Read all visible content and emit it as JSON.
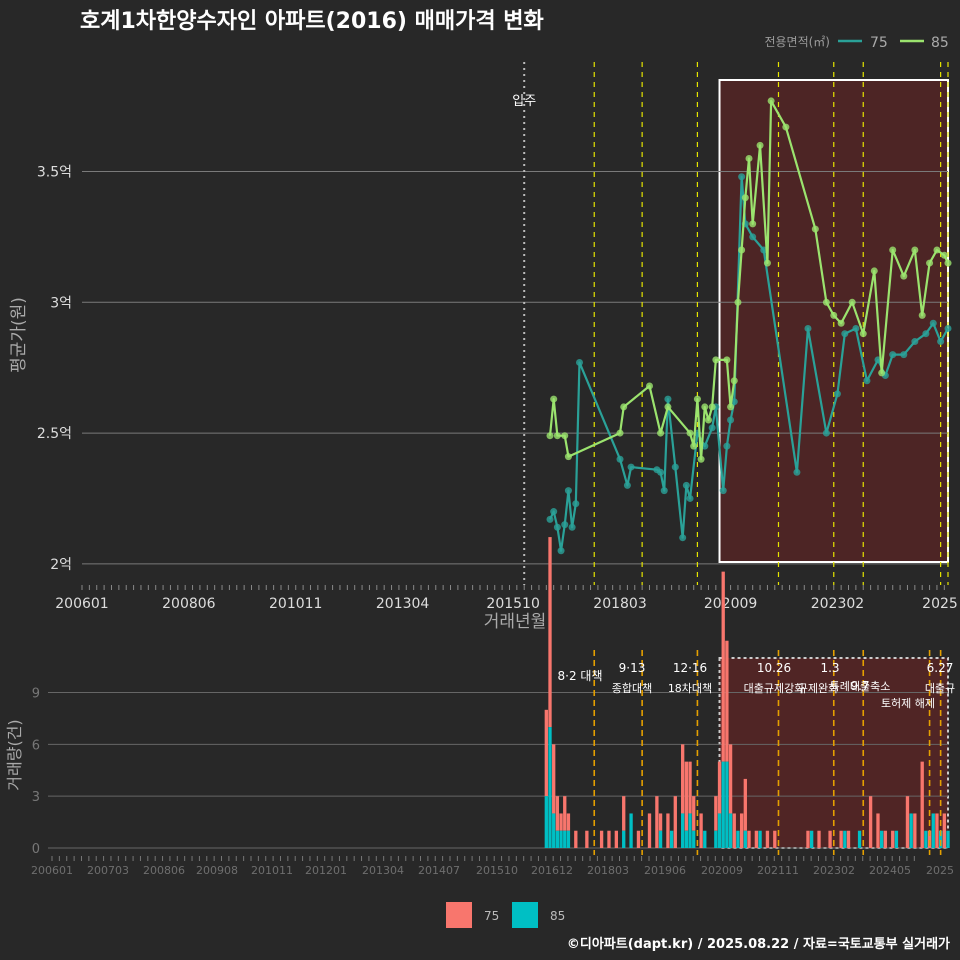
{
  "title": "호계1차한양수자인 아파트(2016) 매매가격 변화",
  "footer": "©디아파트(dapt.kr) / 2025.08.22 / 자료=국토교통부 실거래가",
  "legend_top": {
    "title": "전용면적(㎡)",
    "items": [
      "75",
      "85"
    ]
  },
  "legend_bottom": {
    "items": [
      "75",
      "85"
    ]
  },
  "colors": {
    "s75": "#2aa198",
    "s85": "#9be36e",
    "bar75": "#f8766d",
    "bar85": "#00bfc4",
    "vline": "#e5e500",
    "vline_bottom": "#e5a000",
    "highlight": "#6b2323",
    "bg": "#282828"
  },
  "chart_data": [
    {
      "type": "line",
      "title": "호계1차한양수자인 아파트(2016) 매매가격 변화",
      "xlabel": "거래년월",
      "ylabel": "평균가(원)",
      "x_tick_labels": [
        "200601",
        "200806",
        "201011",
        "201304",
        "201510",
        "201803",
        "202009",
        "202302",
        "2025"
      ],
      "y_tick_labels": [
        "2억",
        "2.5억",
        "3억",
        "3.5억"
      ],
      "y_ticks": [
        2.0,
        2.5,
        3.0,
        3.5
      ],
      "ylim": [
        1.9,
        3.85
      ],
      "xlim": [
        "2006-01",
        "2025-08"
      ],
      "annotation_move_in": {
        "label": "입주",
        "x": "2016-01"
      },
      "policy_lines": [
        "2017-08",
        "2018-09",
        "2019-12",
        "2021-10",
        "2023-01",
        "2023-09",
        "2025-06",
        "2025-08"
      ],
      "highlight_range": [
        "2020-06",
        "2025-08"
      ],
      "series": [
        {
          "name": "75",
          "points": [
            [
              "2016-08",
              2.17
            ],
            [
              "2016-09",
              2.2
            ],
            [
              "2016-10",
              2.14
            ],
            [
              "2016-11",
              2.05
            ],
            [
              "2016-12",
              2.15
            ],
            [
              "2017-01",
              2.28
            ],
            [
              "2017-02",
              2.14
            ],
            [
              "2017-03",
              2.23
            ],
            [
              "2017-04",
              2.77
            ],
            [
              "2018-03",
              2.4
            ],
            [
              "2018-05",
              2.3
            ],
            [
              "2018-06",
              2.37
            ],
            [
              "2019-01",
              2.36
            ],
            [
              "2019-02",
              2.35
            ],
            [
              "2019-03",
              2.28
            ],
            [
              "2019-04",
              2.63
            ],
            [
              "2019-06",
              2.37
            ],
            [
              "2019-08",
              2.1
            ],
            [
              "2019-09",
              2.3
            ],
            [
              "2019-10",
              2.25
            ],
            [
              "2019-12",
              2.5
            ],
            [
              "2020-02",
              2.45
            ],
            [
              "2020-04",
              2.52
            ],
            [
              "2020-05",
              2.6
            ],
            [
              "2020-07",
              2.28
            ],
            [
              "2020-08",
              2.45
            ],
            [
              "2020-09",
              2.55
            ],
            [
              "2020-10",
              2.62
            ],
            [
              "2020-12",
              3.48
            ],
            [
              "2021-01",
              3.3
            ],
            [
              "2021-03",
              3.25
            ],
            [
              "2021-06",
              3.2
            ],
            [
              "2022-03",
              2.35
            ],
            [
              "2022-06",
              2.9
            ],
            [
              "2022-11",
              2.5
            ],
            [
              "2023-02",
              2.65
            ],
            [
              "2023-04",
              2.88
            ],
            [
              "2023-07",
              2.9
            ],
            [
              "2023-10",
              2.7
            ],
            [
              "2024-01",
              2.78
            ],
            [
              "2024-03",
              2.72
            ],
            [
              "2024-05",
              2.8
            ],
            [
              "2024-08",
              2.8
            ],
            [
              "2024-11",
              2.85
            ],
            [
              "2025-02",
              2.88
            ],
            [
              "2025-04",
              2.92
            ],
            [
              "2025-06",
              2.85
            ],
            [
              "2025-08",
              2.9
            ]
          ]
        },
        {
          "name": "85",
          "points": [
            [
              "2016-08",
              2.49
            ],
            [
              "2016-09",
              2.63
            ],
            [
              "2016-10",
              2.49
            ],
            [
              "2016-12",
              2.49
            ],
            [
              "2017-01",
              2.41
            ],
            [
              "2018-03",
              2.5
            ],
            [
              "2018-04",
              2.6
            ],
            [
              "2018-11",
              2.68
            ],
            [
              "2019-02",
              2.5
            ],
            [
              "2019-04",
              2.6
            ],
            [
              "2019-10",
              2.5
            ],
            [
              "2019-11",
              2.45
            ],
            [
              "2019-12",
              2.63
            ],
            [
              "2020-01",
              2.4
            ],
            [
              "2020-02",
              2.6
            ],
            [
              "2020-03",
              2.55
            ],
            [
              "2020-04",
              2.6
            ],
            [
              "2020-05",
              2.78
            ],
            [
              "2020-08",
              2.78
            ],
            [
              "2020-09",
              2.6
            ],
            [
              "2020-10",
              2.7
            ],
            [
              "2020-11",
              3.0
            ],
            [
              "2020-12",
              3.2
            ],
            [
              "2021-01",
              3.4
            ],
            [
              "2021-02",
              3.55
            ],
            [
              "2021-03",
              3.3
            ],
            [
              "2021-05",
              3.6
            ],
            [
              "2021-07",
              3.15
            ],
            [
              "2021-08",
              3.77
            ],
            [
              "2021-12",
              3.67
            ],
            [
              "2022-08",
              3.28
            ],
            [
              "2022-11",
              3.0
            ],
            [
              "2023-01",
              2.95
            ],
            [
              "2023-03",
              2.92
            ],
            [
              "2023-06",
              3.0
            ],
            [
              "2023-09",
              2.88
            ],
            [
              "2023-12",
              3.12
            ],
            [
              "2024-02",
              2.73
            ],
            [
              "2024-05",
              3.2
            ],
            [
              "2024-08",
              3.1
            ],
            [
              "2024-11",
              3.2
            ],
            [
              "2025-01",
              2.95
            ],
            [
              "2025-03",
              3.15
            ],
            [
              "2025-05",
              3.2
            ],
            [
              "2025-07",
              3.18
            ],
            [
              "2025-08",
              3.15
            ]
          ]
        }
      ]
    },
    {
      "type": "bar",
      "ylabel": "거래량(건)",
      "x_tick_labels": [
        "200601",
        "200703",
        "200806",
        "200908",
        "201011",
        "201201",
        "201304",
        "201407",
        "201510",
        "201612",
        "201803",
        "201906",
        "202009",
        "202111",
        "202302",
        "202405",
        "2025"
      ],
      "y_tick_labels": [
        "0",
        "3",
        "6",
        "9"
      ],
      "y_ticks": [
        0,
        3,
        6,
        9
      ],
      "ylim": [
        0,
        11
      ],
      "highlight_range": [
        "2020-06",
        "2025-08"
      ],
      "policy_labels": [
        {
          "date": "8·2 대책",
          "x": "2017-08"
        },
        {
          "date": "9·13",
          "name": "종합대책",
          "x": "2018-09"
        },
        {
          "date": "12·16",
          "name": "18차대책",
          "x": "2019-12"
        },
        {
          "date": "10.26",
          "name": "대출규제강화",
          "x": "2021-10"
        },
        {
          "date": "1.3",
          "name": "규제완화",
          "x": "2023-01"
        },
        {
          "date": "9.7",
          "name": "특례대출축소",
          "x": "2023-09"
        },
        {
          "date": "",
          "name": "토허제 해제",
          "x": "2025-03"
        },
        {
          "date": "6.27",
          "name": "대출규",
          "x": "2025-06"
        }
      ],
      "series": [
        {
          "name": "75",
          "values": [
            [
              "2016-07",
              5
            ],
            [
              "2016-08",
              11
            ],
            [
              "2016-09",
              4
            ],
            [
              "2016-10",
              2
            ],
            [
              "2016-11",
              1
            ],
            [
              "2016-12",
              2
            ],
            [
              "2017-01",
              1
            ],
            [
              "2017-03",
              1
            ],
            [
              "2017-06",
              1
            ],
            [
              "2017-10",
              1
            ],
            [
              "2017-12",
              1
            ],
            [
              "2018-02",
              1
            ],
            [
              "2018-04",
              2
            ],
            [
              "2018-08",
              1
            ],
            [
              "2018-11",
              2
            ],
            [
              "2019-01",
              3
            ],
            [
              "2019-02",
              1
            ],
            [
              "2019-04",
              2
            ],
            [
              "2019-06",
              3
            ],
            [
              "2019-08",
              4
            ],
            [
              "2019-09",
              4
            ],
            [
              "2019-10",
              3
            ],
            [
              "2019-11",
              2
            ],
            [
              "2020-01",
              2
            ],
            [
              "2020-05",
              2
            ],
            [
              "2020-06",
              3
            ],
            [
              "2020-07",
              11
            ],
            [
              "2020-08",
              7
            ],
            [
              "2020-09",
              4
            ],
            [
              "2020-10",
              2
            ],
            [
              "2020-12",
              2
            ],
            [
              "2021-01",
              3
            ],
            [
              "2021-02",
              1
            ],
            [
              "2021-04",
              1
            ],
            [
              "2021-07",
              1
            ],
            [
              "2021-09",
              1
            ],
            [
              "2022-06",
              1
            ],
            [
              "2022-09",
              1
            ],
            [
              "2022-12",
              1
            ],
            [
              "2023-03",
              1
            ],
            [
              "2023-05",
              1
            ],
            [
              "2023-11",
              3
            ],
            [
              "2024-01",
              2
            ],
            [
              "2024-03",
              1
            ],
            [
              "2024-05",
              1
            ],
            [
              "2024-09",
              3
            ],
            [
              "2024-11",
              2
            ],
            [
              "2025-01",
              5
            ],
            [
              "2025-03",
              1
            ],
            [
              "2025-05",
              2
            ],
            [
              "2025-07",
              2
            ]
          ]
        },
        {
          "name": "85",
          "values": [
            [
              "2016-07",
              3
            ],
            [
              "2016-08",
              7
            ],
            [
              "2016-09",
              2
            ],
            [
              "2016-10",
              1
            ],
            [
              "2016-11",
              1
            ],
            [
              "2016-12",
              1
            ],
            [
              "2017-01",
              1
            ],
            [
              "2018-04",
              1
            ],
            [
              "2018-06",
              2
            ],
            [
              "2019-02",
              1
            ],
            [
              "2019-05",
              1
            ],
            [
              "2019-08",
              2
            ],
            [
              "2019-09",
              1
            ],
            [
              "2019-10",
              2
            ],
            [
              "2019-11",
              1
            ],
            [
              "2020-02",
              1
            ],
            [
              "2020-05",
              1
            ],
            [
              "2020-06",
              2
            ],
            [
              "2020-07",
              5
            ],
            [
              "2020-08",
              5
            ],
            [
              "2020-09",
              2
            ],
            [
              "2020-11",
              1
            ],
            [
              "2021-01",
              1
            ],
            [
              "2021-05",
              1
            ],
            [
              "2022-07",
              1
            ],
            [
              "2023-04",
              1
            ],
            [
              "2023-08",
              1
            ],
            [
              "2024-02",
              1
            ],
            [
              "2024-06",
              1
            ],
            [
              "2024-10",
              2
            ],
            [
              "2025-02",
              1
            ],
            [
              "2025-04",
              2
            ],
            [
              "2025-06",
              1
            ],
            [
              "2025-08",
              1
            ]
          ]
        }
      ]
    }
  ]
}
